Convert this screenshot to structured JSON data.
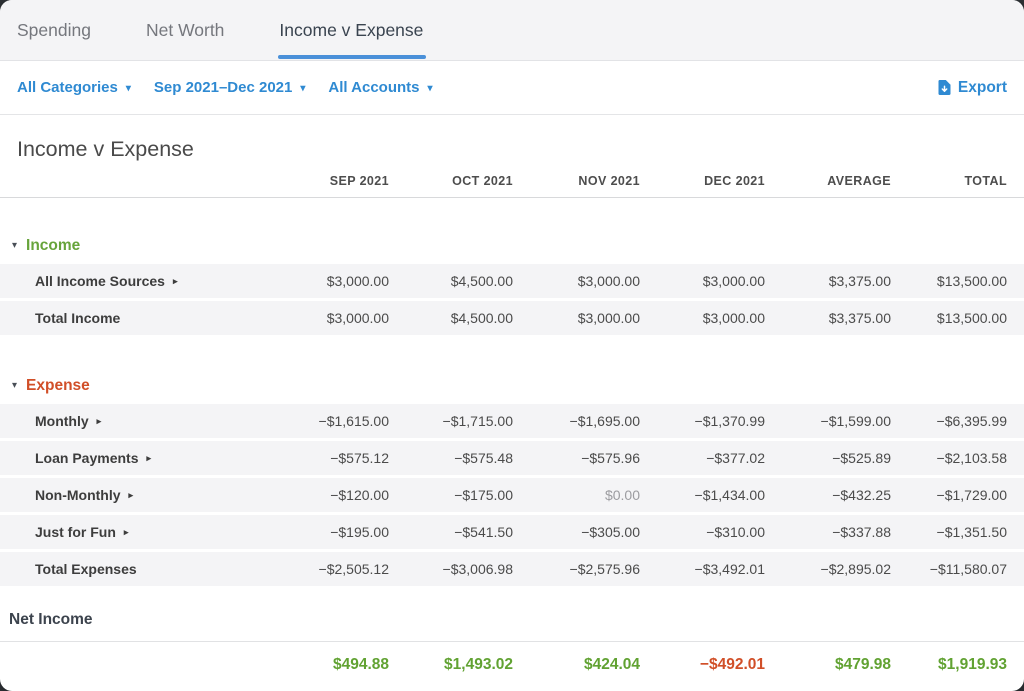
{
  "tabs": [
    {
      "label": "Spending",
      "active": false
    },
    {
      "label": "Net Worth",
      "active": false
    },
    {
      "label": "Income v Expense",
      "active": true
    }
  ],
  "filters": {
    "categories": "All Categories",
    "date_range": "Sep 2021–Dec 2021",
    "accounts": "All Accounts",
    "export_label": "Export"
  },
  "page": {
    "title": "Income v Expense"
  },
  "colors": {
    "accent_blue": "#2f8ad2",
    "tab_underline": "#4a90d9",
    "income_green": "#67a43b",
    "expense_orange": "#d14f28",
    "positive_green": "#61a232",
    "negative_red": "#d14f28"
  },
  "table": {
    "columns": [
      "SEP 2021",
      "OCT 2021",
      "NOV 2021",
      "DEC 2021",
      "AVERAGE",
      "TOTAL"
    ],
    "sections": [
      {
        "name": "Income",
        "color": "#67a43b",
        "rows": [
          {
            "label": "All Income Sources",
            "expandable": true,
            "values": [
              "$3,000.00",
              "$4,500.00",
              "$3,000.00",
              "$3,000.00",
              "$3,375.00",
              "$13,500.00"
            ],
            "muted_indices": []
          },
          {
            "label": "Total Income",
            "expandable": false,
            "values": [
              "$3,000.00",
              "$4,500.00",
              "$3,000.00",
              "$3,000.00",
              "$3,375.00",
              "$13,500.00"
            ],
            "muted_indices": []
          }
        ]
      },
      {
        "name": "Expense",
        "color": "#d14f28",
        "rows": [
          {
            "label": "Monthly",
            "expandable": true,
            "values": [
              "−$1,615.00",
              "−$1,715.00",
              "−$1,695.00",
              "−$1,370.99",
              "−$1,599.00",
              "−$6,395.99"
            ],
            "muted_indices": []
          },
          {
            "label": "Loan Payments",
            "expandable": true,
            "values": [
              "−$575.12",
              "−$575.48",
              "−$575.96",
              "−$377.02",
              "−$525.89",
              "−$2,103.58"
            ],
            "muted_indices": []
          },
          {
            "label": "Non-Monthly",
            "expandable": true,
            "values": [
              "−$120.00",
              "−$175.00",
              "$0.00",
              "−$1,434.00",
              "−$432.25",
              "−$1,729.00"
            ],
            "muted_indices": [
              2
            ]
          },
          {
            "label": "Just for Fun",
            "expandable": true,
            "values": [
              "−$195.00",
              "−$541.50",
              "−$305.00",
              "−$310.00",
              "−$337.88",
              "−$1,351.50"
            ],
            "muted_indices": []
          },
          {
            "label": "Total Expenses",
            "expandable": false,
            "values": [
              "−$2,505.12",
              "−$3,006.98",
              "−$2,575.96",
              "−$3,492.01",
              "−$2,895.02",
              "−$11,580.07"
            ],
            "muted_indices": []
          }
        ]
      }
    ],
    "net_income": {
      "label": "Net Income",
      "values": [
        "$494.88",
        "$1,493.02",
        "$424.04",
        "−$492.01",
        "$479.98",
        "$1,919.93"
      ],
      "negative_indices": [
        3
      ]
    }
  }
}
